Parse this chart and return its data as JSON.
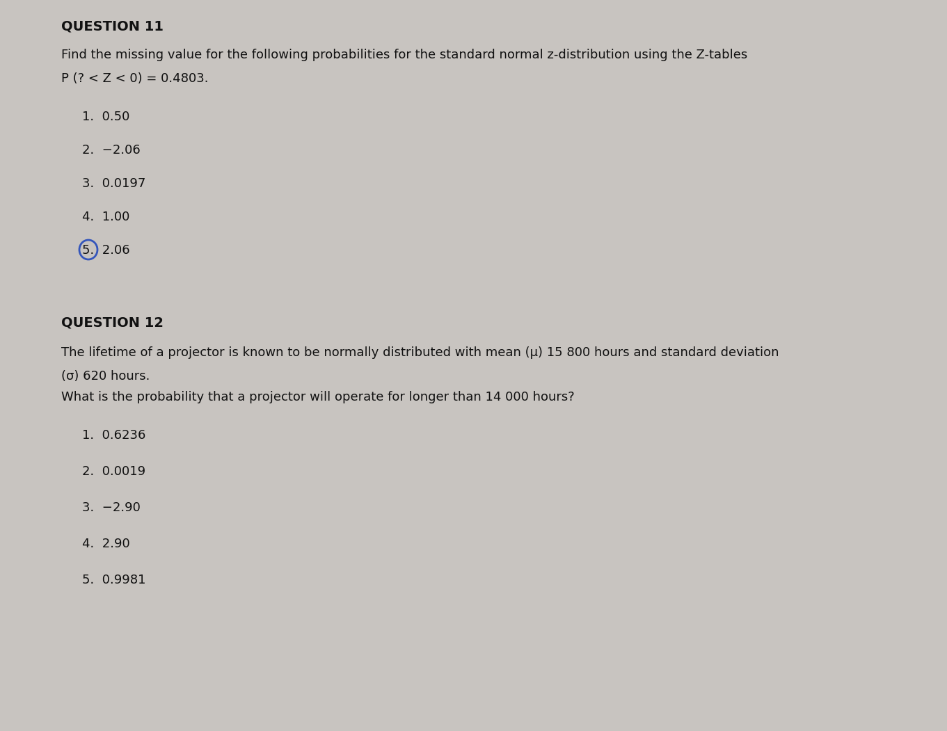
{
  "bg_color": "#c8c4c0",
  "text_color": "#111111",
  "q11_heading": "QUESTION 11",
  "q11_line1": "Find the missing value for the following probabilities for the standard normal z-distribution using the Z-tables",
  "q11_line2": "P (? < Z < 0) = 0.4803.",
  "q11_options": [
    "1.  0.50",
    "2.  −2.06",
    "3.  0.0197",
    "4.  1.00",
    "5.  2.06"
  ],
  "q12_heading": "QUESTION 12",
  "q12_line1": "The lifetime of a projector is known to be normally distributed with mean (μ) 15 800 hours and standard deviation",
  "q12_line2": "(σ) 620 hours.",
  "q12_line3": "What is the probability that a projector will operate for longer than 14 000 hours?",
  "q12_options": [
    "1.  0.6236",
    "2.  0.0019",
    "3.  −2.90",
    "4.  2.90",
    "5.  0.9981"
  ],
  "heading_fontsize": 14,
  "body_fontsize": 13,
  "option_fontsize": 13,
  "fig_width": 13.61,
  "fig_height": 10.51,
  "dpi": 100
}
